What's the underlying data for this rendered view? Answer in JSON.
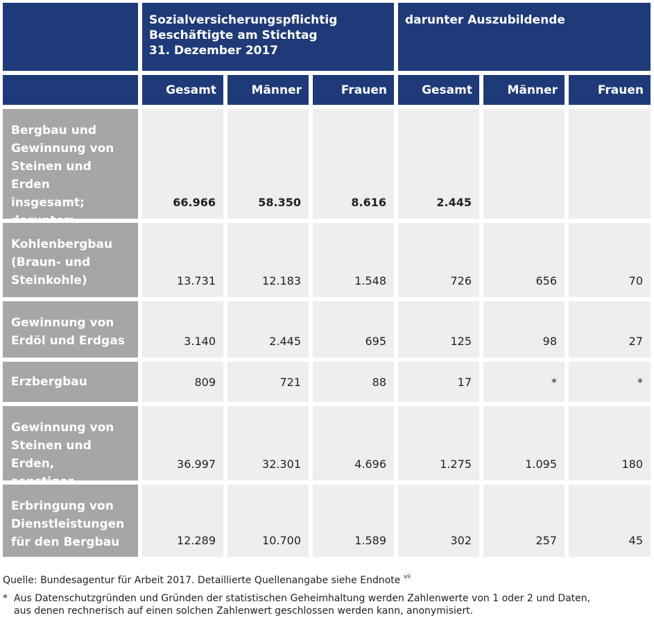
{
  "header": {
    "group1": [
      "Sozialversicherungspflichtig",
      "Beschäftigte am Stichtag",
      "31. Dezember 2017"
    ],
    "group2": "darunter Auszubildende",
    "columns": [
      "Gesamt",
      "Männer",
      "Frauen",
      "Gesamt",
      "Männer",
      "Frauen"
    ]
  },
  "rows": [
    {
      "label": [
        "Bergbau und",
        "Gewinnung von",
        "Steinen und Erden",
        "insgesamt;",
        "darunter:"
      ],
      "values": [
        "66.966",
        "58.350",
        "8.616",
        "2.445",
        "",
        ""
      ]
    },
    {
      "label": [
        "Kohlenbergbau",
        "(Braun- und",
        "Steinkohle)"
      ],
      "values": [
        "13.731",
        "12.183",
        "1.548",
        "726",
        "656",
        "70"
      ]
    },
    {
      "label": [
        "Gewinnung von",
        "Erdöl und Erdgas"
      ],
      "values": [
        "3.140",
        "2.445",
        "695",
        "125",
        "98",
        "27"
      ]
    },
    {
      "label": [
        "Erzbergbau"
      ],
      "values": [
        "809",
        "721",
        "88",
        "17",
        "*",
        "*"
      ]
    },
    {
      "label": [
        "Gewinnung von",
        "Steinen und Erden,",
        "sonstiger Bergbau"
      ],
      "values": [
        "36.997",
        "32.301",
        "4.696",
        "1.275",
        "1.095",
        "180"
      ]
    },
    {
      "label": [
        "Erbringung von",
        "Dienstleistungen",
        "für den Bergbau"
      ],
      "values": [
        "12.289",
        "10.700",
        "1.589",
        "302",
        "257",
        "45"
      ]
    }
  ],
  "source": {
    "text": "Quelle: Bundesagentur für Arbeit 2017. Detaillierte Quellenangabe siehe Endnote",
    "note_mark": "vii"
  },
  "footnote": {
    "mark": "*",
    "line1": "Aus Datenschutzgründen und Gründen der statistischen Geheimhaltung werden Zahlenwerte von 1 oder 2 und Daten,",
    "line2": "aus denen rechnerisch auf einen solchen Zahlenwert geschlossen werden kann, anonymisiert."
  },
  "colors": {
    "header_blue": "#1f3a78",
    "row_head_grey": "#a6a6a6",
    "cell_grey": "#eeeeee"
  }
}
